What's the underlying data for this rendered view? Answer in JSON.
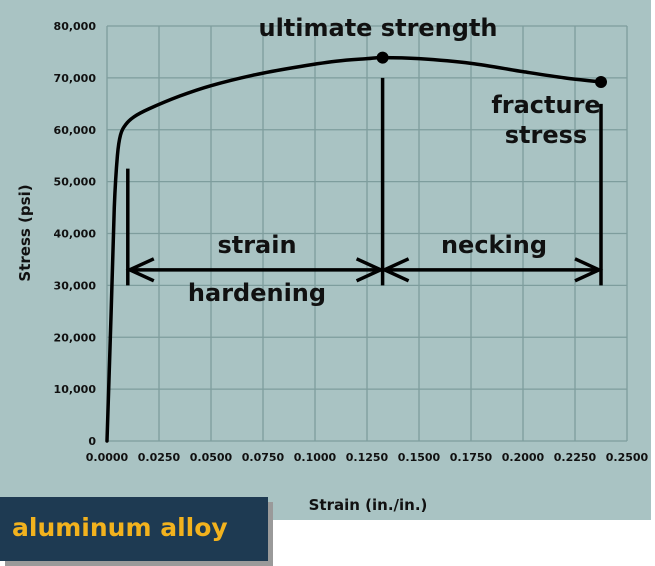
{
  "chart_data": {
    "type": "line",
    "xlabel": "Strain (in./in.)",
    "ylabel": "Stress (psi)",
    "xlim": [
      0,
      0.25
    ],
    "ylim": [
      0,
      80000
    ],
    "x_ticks": [
      "0.0000",
      "0.0250",
      "0.0500",
      "0.0750",
      "0.1000",
      "0.1250",
      "0.1500",
      "0.1750",
      "0.2000",
      "0.2250",
      "0.2500"
    ],
    "y_ticks": [
      "0",
      "10,000",
      "20,000",
      "30,000",
      "40,000",
      "50,000",
      "60,000",
      "70,000",
      "80,000"
    ],
    "grid": true,
    "series": [
      {
        "x": [
          0.0,
          0.002,
          0.0035,
          0.005,
          0.0065,
          0.009,
          0.013,
          0.02,
          0.035,
          0.05,
          0.07,
          0.09,
          0.11,
          0.125,
          0.1325,
          0.15,
          0.175,
          0.2,
          0.22,
          0.2375
        ],
        "y": [
          0,
          25000,
          45000,
          55000,
          59000,
          61000,
          62500,
          64000,
          66500,
          68500,
          70500,
          72000,
          73200,
          73700,
          73900,
          73700,
          72800,
          71200,
          70000,
          69200
        ]
      }
    ],
    "points": [
      {
        "name": "ultimate-strength-point",
        "x": 0.1325,
        "y": 73900
      },
      {
        "name": "fracture-point",
        "x": 0.2375,
        "y": 69200
      }
    ],
    "annotations": {
      "ultimate_strength": "ultimate strength",
      "fracture_line1": "fracture",
      "fracture_line2": "stress",
      "strain_line1": "strain",
      "strain_line2": "hardening",
      "necking": "necking"
    },
    "markers": {
      "strain_hardening_start_x": 0.01,
      "ultimate_x": 0.1325,
      "fracture_x": 0.2375,
      "arrow_y": 33000
    }
  },
  "badge": {
    "label": "aluminum alloy"
  },
  "colors": {
    "plot_background": "#a9c3c3",
    "grid": "#7e9d9d",
    "curve": "#000000",
    "badge_background": "#1e3a52",
    "badge_text": "#f2b21e"
  }
}
